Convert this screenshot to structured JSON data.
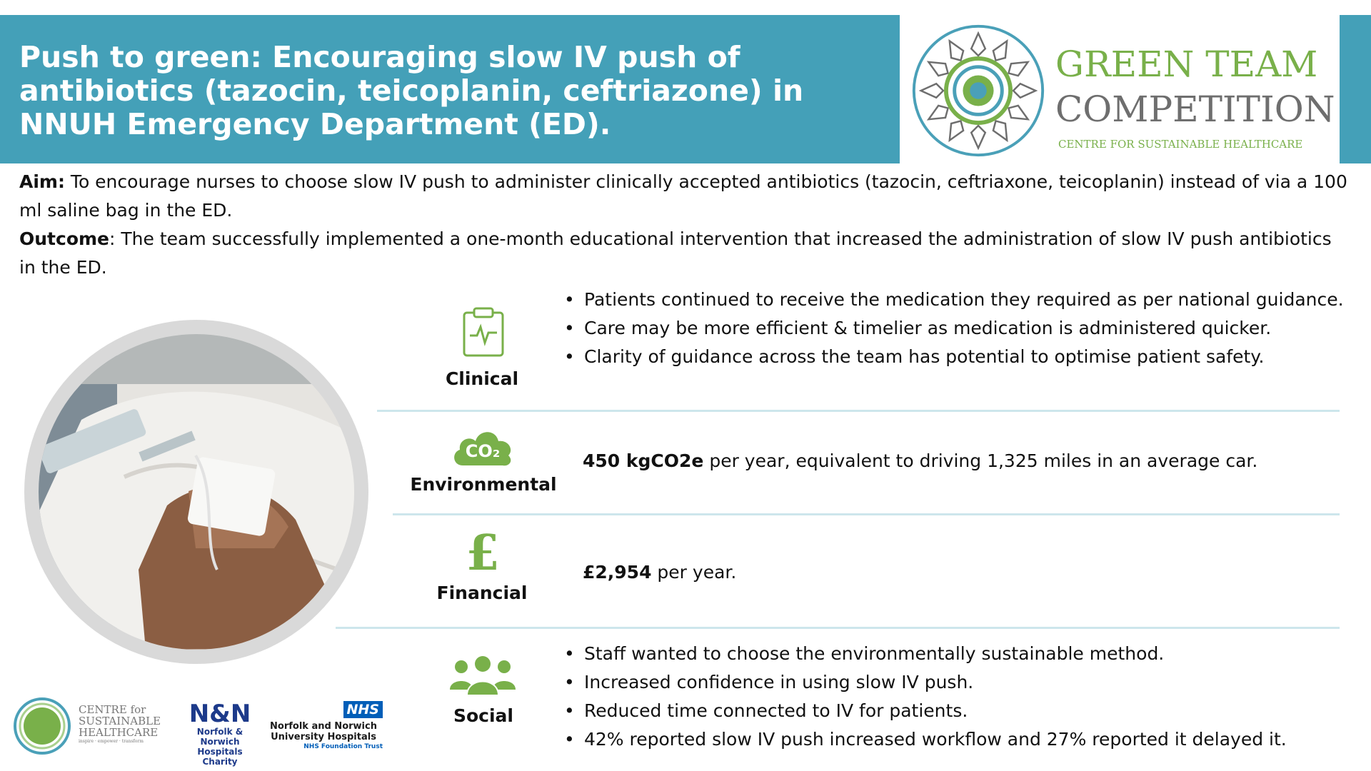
{
  "banner": {
    "title": "Push to green: Encouraging slow IV push of antibiotics (tazocin, teicoplanin, ceftriazone) in NNUH Emergency Department (ED)."
  },
  "logo": {
    "line1": "GREEN TEAM",
    "line2": "COMPETITION",
    "line3": "CENTRE FOR SUSTAINABLE HEALTHCARE"
  },
  "intro": {
    "aim_label": "Aim:",
    "aim_text": " To encourage nurses to choose slow IV push to administer clinically accepted antibiotics (tazocin, ceftriaxone, teicoplanin) instead of via a 100 ml saline bag in the ED.",
    "outcome_label": "Outcome",
    "outcome_text": ": The team successfully implemented a one-month educational intervention that increased the administration of slow IV push antibiotics in the ED."
  },
  "clinical": {
    "label": "Clinical",
    "bullets": [
      "Patients continued to receive the medication they required as per national guidance.",
      "Care may be more efficient & timelier as medication is administered quicker.",
      "Clarity of guidance across the team has potential to optimise patient safety."
    ]
  },
  "environmental": {
    "label": "Environmental",
    "icon_text": "CO₂",
    "value": "450 kgCO2e",
    "text": " per year, equivalent to driving 1,325 miles in an average car."
  },
  "financial": {
    "label": "Financial",
    "icon_text": "£",
    "value": "£2,954",
    "text": " per year."
  },
  "social": {
    "label": "Social",
    "bullets": [
      "Staff wanted to choose the environmentally sustainable method.",
      "Increased confidence in using slow IV push.",
      "Reduced time connected to IV for patients.",
      "42% reported slow IV push increased workflow and 27% reported it delayed it."
    ]
  },
  "footer": {
    "csh_line1": "CENTRE for",
    "csh_line2": "SUSTAINABLE",
    "csh_line3": "HEALTHCARE",
    "csh_tagline": "inspire · empower · transform",
    "nn_mark": "N&N",
    "nn_line1": "Norfolk & Norwich",
    "nn_line2": "Hospitals Charity",
    "nhs_mark": "NHS",
    "nhs_line1": "Norfolk and Norwich",
    "nhs_line2": "University Hospitals",
    "nhs_line3": "NHS Foundation Trust"
  },
  "colors": {
    "banner": "#44a0b8",
    "green": "#79b04a",
    "divider": "#cde6ec"
  }
}
